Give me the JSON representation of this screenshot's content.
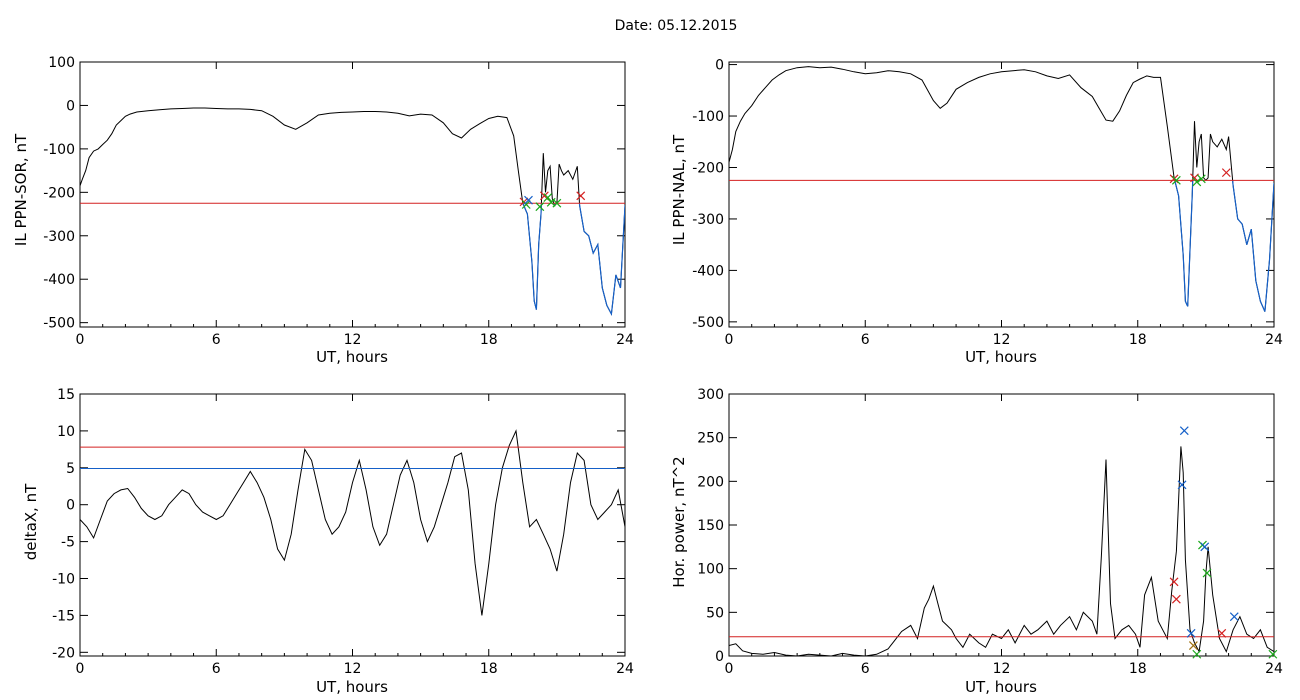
{
  "date_label": "Date:  05.12.2015",
  "colors": {
    "data": "#000000",
    "threshold": "#d42020",
    "lower": "#1560c8",
    "green": "#1aa81a"
  },
  "chart_data": [
    {
      "id": "sor",
      "type": "line",
      "ylabel": "IL PPN-SOR, nT",
      "xlabel": "UT, hours",
      "xlim": [
        0,
        24
      ],
      "ylim": [
        -510,
        100
      ],
      "xticks": [
        0,
        6,
        12,
        18,
        24
      ],
      "yticks": [
        100,
        0,
        -100,
        -200,
        -300,
        -400,
        -500
      ],
      "threshold": -225,
      "lower_color_below_threshold": true,
      "series": [
        {
          "x": [
            0,
            0.1,
            0.25,
            0.4,
            0.6,
            0.8,
            1.0,
            1.2,
            1.4,
            1.6,
            1.8,
            2.0,
            2.2,
            2.5,
            3.0,
            3.5,
            4.0,
            4.5,
            5.0,
            5.5,
            6.0,
            6.5,
            7.0,
            7.5,
            8.0,
            8.5,
            9.0,
            9.5,
            10.0,
            10.5,
            11.0,
            11.5,
            12.0,
            12.5,
            13.0,
            13.5,
            14.0,
            14.5,
            15.0,
            15.5,
            16.0,
            16.4,
            16.8,
            17.2,
            17.6,
            18.0,
            18.4,
            18.8,
            19.1,
            19.3,
            19.5,
            19.7,
            19.9,
            20.0,
            20.1,
            20.2,
            20.3,
            20.4,
            20.5,
            20.6,
            20.7,
            20.8,
            20.9,
            21.0,
            21.1,
            21.2,
            21.3,
            21.5,
            21.7,
            21.9,
            22.0,
            22.2,
            22.4,
            22.6,
            22.8,
            23.0,
            23.2,
            23.4,
            23.6,
            23.8,
            24.0
          ],
          "values": [
            -185,
            -170,
            -150,
            -120,
            -105,
            -100,
            -90,
            -80,
            -65,
            -45,
            -35,
            -25,
            -20,
            -15,
            -12,
            -10,
            -8,
            -7,
            -6,
            -6,
            -7,
            -8,
            -8,
            -9,
            -12,
            -25,
            -45,
            -55,
            -40,
            -22,
            -18,
            -16,
            -15,
            -14,
            -14,
            -15,
            -18,
            -24,
            -20,
            -22,
            -40,
            -65,
            -75,
            -55,
            -42,
            -30,
            -25,
            -28,
            -70,
            -150,
            -225,
            -250,
            -360,
            -450,
            -470,
            -320,
            -250,
            -110,
            -200,
            -150,
            -140,
            -215,
            -230,
            -225,
            -135,
            -150,
            -160,
            -150,
            -170,
            -140,
            -230,
            -290,
            -300,
            -340,
            -320,
            -420,
            -460,
            -480,
            -390,
            -420,
            -230
          ]
        }
      ],
      "markers": [
        {
          "x": 19.55,
          "y": -222,
          "color": "#d42020"
        },
        {
          "x": 19.65,
          "y": -228,
          "color": "#1aa81a"
        },
        {
          "x": 19.75,
          "y": -218,
          "color": "#1560c8"
        },
        {
          "x": 20.25,
          "y": -233,
          "color": "#1aa81a"
        },
        {
          "x": 20.45,
          "y": -208,
          "color": "#d42020"
        },
        {
          "x": 20.6,
          "y": -212,
          "color": "#1aa81a"
        },
        {
          "x": 20.75,
          "y": -223,
          "color": "#1aa81a"
        },
        {
          "x": 21.0,
          "y": -225,
          "color": "#1aa81a"
        },
        {
          "x": 22.05,
          "y": -208,
          "color": "#d42020"
        }
      ]
    },
    {
      "id": "nal",
      "type": "line",
      "ylabel": "IL PPN-NAL, nT",
      "xlabel": "UT, hours",
      "xlim": [
        0,
        24
      ],
      "ylim": [
        -510,
        5
      ],
      "xticks": [
        0,
        6,
        12,
        18,
        24
      ],
      "yticks": [
        0,
        -100,
        -200,
        -300,
        -400,
        -500
      ],
      "threshold": -225,
      "lower_color_below_threshold": true,
      "series": [
        {
          "x": [
            0,
            0.15,
            0.3,
            0.5,
            0.7,
            1.0,
            1.3,
            1.6,
            1.9,
            2.2,
            2.5,
            3.0,
            3.5,
            4.0,
            4.5,
            5.0,
            5.5,
            6.0,
            6.5,
            7.0,
            7.5,
            8.0,
            8.5,
            9.0,
            9.3,
            9.6,
            10.0,
            10.5,
            11.0,
            11.5,
            12.0,
            12.5,
            13.0,
            13.5,
            14.0,
            14.5,
            15.0,
            15.5,
            16.0,
            16.3,
            16.6,
            16.9,
            17.2,
            17.5,
            17.8,
            18.1,
            18.4,
            18.7,
            19.0,
            19.3,
            19.6,
            19.8,
            20.0,
            20.1,
            20.2,
            20.3,
            20.4,
            20.5,
            20.6,
            20.7,
            20.8,
            20.9,
            21.0,
            21.1,
            21.2,
            21.3,
            21.5,
            21.7,
            21.9,
            22.0,
            22.2,
            22.4,
            22.6,
            22.8,
            23.0,
            23.2,
            23.4,
            23.6,
            23.8,
            24.0
          ],
          "values": [
            -190,
            -165,
            -130,
            -110,
            -95,
            -80,
            -60,
            -45,
            -30,
            -20,
            -12,
            -6,
            -4,
            -6,
            -5,
            -9,
            -14,
            -18,
            -16,
            -12,
            -14,
            -18,
            -30,
            -70,
            -85,
            -75,
            -48,
            -35,
            -25,
            -18,
            -14,
            -12,
            -10,
            -14,
            -22,
            -27,
            -20,
            -45,
            -62,
            -85,
            -108,
            -110,
            -90,
            -60,
            -35,
            -28,
            -22,
            -25,
            -25,
            -120,
            -220,
            -255,
            -370,
            -460,
            -470,
            -360,
            -250,
            -110,
            -200,
            -150,
            -135,
            -220,
            -225,
            -220,
            -135,
            -150,
            -160,
            -145,
            -165,
            -140,
            -235,
            -300,
            -310,
            -350,
            -320,
            -420,
            -460,
            -480,
            -380,
            -230
          ]
        }
      ],
      "markers": [
        {
          "x": 19.6,
          "y": -222,
          "color": "#d42020"
        },
        {
          "x": 19.7,
          "y": -225,
          "color": "#1aa81a"
        },
        {
          "x": 20.5,
          "y": -220,
          "color": "#d42020"
        },
        {
          "x": 20.6,
          "y": -228,
          "color": "#1aa81a"
        },
        {
          "x": 20.8,
          "y": -222,
          "color": "#1aa81a"
        },
        {
          "x": 21.9,
          "y": -210,
          "color": "#d42020"
        }
      ]
    },
    {
      "id": "deltax",
      "type": "line",
      "ylabel": "deltaX, nT",
      "xlabel": "UT, hours",
      "xlim": [
        0,
        24
      ],
      "ylim": [
        -20.5,
        15
      ],
      "xticks": [
        0,
        6,
        12,
        18,
        24
      ],
      "yticks": [
        15,
        10,
        5,
        0,
        -5,
        -10,
        -15,
        -20
      ],
      "thresholds": [
        {
          "y": 7.8,
          "color": "#d42020"
        },
        {
          "y": 4.9,
          "color": "#1560c8"
        }
      ],
      "series": [
        {
          "x": [
            0,
            0.3,
            0.6,
            0.9,
            1.2,
            1.5,
            1.8,
            2.1,
            2.4,
            2.7,
            3.0,
            3.3,
            3.6,
            3.9,
            4.2,
            4.5,
            4.8,
            5.1,
            5.4,
            5.7,
            6.0,
            6.3,
            6.6,
            6.9,
            7.2,
            7.5,
            7.8,
            8.1,
            8.4,
            8.7,
            9.0,
            9.3,
            9.6,
            9.9,
            10.2,
            10.5,
            10.8,
            11.1,
            11.4,
            11.7,
            12.0,
            12.3,
            12.6,
            12.9,
            13.2,
            13.5,
            13.8,
            14.1,
            14.4,
            14.7,
            15.0,
            15.3,
            15.6,
            15.9,
            16.2,
            16.5,
            16.8,
            17.1,
            17.4,
            17.7,
            18.0,
            18.3,
            18.6,
            18.9,
            19.2,
            19.5,
            19.8,
            20.1,
            20.4,
            20.7,
            21.0,
            21.3,
            21.6,
            21.9,
            22.2,
            22.5,
            22.8,
            23.1,
            23.4,
            23.7,
            24.0
          ],
          "values": [
            -2,
            -3,
            -4.5,
            -2,
            0.5,
            1.5,
            2,
            2.2,
            1,
            -0.5,
            -1.5,
            -2,
            -1.5,
            0,
            1,
            2,
            1.5,
            0,
            -1,
            -1.5,
            -2,
            -1.5,
            0,
            1.5,
            3,
            4.5,
            3,
            1,
            -2,
            -6,
            -7.5,
            -4,
            2,
            7.5,
            6,
            2,
            -2,
            -4,
            -3,
            -1,
            3,
            6,
            2,
            -3,
            -5.5,
            -4,
            0,
            4,
            6,
            3,
            -2,
            -5,
            -3,
            0,
            3,
            6.5,
            7,
            2,
            -8,
            -15,
            -8,
            0,
            5,
            8,
            10,
            3,
            -3,
            -2,
            -4,
            -6,
            -9,
            -4,
            3,
            7,
            6,
            0,
            -2,
            -1,
            0,
            2,
            -3
          ]
        }
      ]
    },
    {
      "id": "power",
      "type": "line",
      "ylabel": "Hor. power, nT^2",
      "xlabel": "UT, hours",
      "xlim": [
        0,
        24
      ],
      "ylim": [
        0,
        300
      ],
      "xticks": [
        0,
        6,
        12,
        18,
        24
      ],
      "yticks": [
        300,
        250,
        200,
        150,
        100,
        50,
        0
      ],
      "threshold": 22,
      "series": [
        {
          "x": [
            0,
            0.3,
            0.6,
            1.0,
            1.5,
            2.0,
            2.5,
            3.0,
            3.5,
            4.0,
            4.5,
            5.0,
            5.5,
            6.0,
            6.5,
            7.0,
            7.3,
            7.6,
            8.0,
            8.3,
            8.6,
            8.8,
            9.0,
            9.2,
            9.4,
            9.6,
            9.8,
            10.0,
            10.3,
            10.6,
            11.0,
            11.3,
            11.6,
            12.0,
            12.3,
            12.6,
            13.0,
            13.3,
            13.6,
            14.0,
            14.3,
            14.6,
            15.0,
            15.3,
            15.6,
            16.0,
            16.2,
            16.4,
            16.6,
            16.8,
            17.0,
            17.3,
            17.6,
            17.9,
            18.1,
            18.3,
            18.6,
            18.9,
            19.1,
            19.3,
            19.5,
            19.7,
            19.9,
            20.0,
            20.1,
            20.3,
            20.5,
            20.7,
            20.9,
            21.0,
            21.1,
            21.3,
            21.6,
            21.9,
            22.2,
            22.5,
            22.8,
            23.1,
            23.4,
            23.7,
            24.0
          ],
          "values": [
            12,
            14,
            6,
            3,
            2,
            4,
            1,
            0,
            2,
            1,
            0,
            3,
            1,
            0,
            2,
            8,
            18,
            28,
            35,
            20,
            55,
            65,
            80,
            60,
            40,
            35,
            30,
            20,
            10,
            25,
            15,
            10,
            25,
            20,
            30,
            15,
            35,
            25,
            30,
            40,
            25,
            35,
            45,
            30,
            50,
            40,
            25,
            115,
            225,
            60,
            20,
            30,
            35,
            25,
            10,
            70,
            90,
            40,
            30,
            20,
            75,
            120,
            240,
            210,
            110,
            30,
            15,
            5,
            40,
            95,
            125,
            70,
            20,
            5,
            30,
            45,
            25,
            20,
            30,
            10,
            5
          ]
        }
      ],
      "markers": [
        {
          "x": 19.6,
          "y": 85,
          "color": "#d42020"
        },
        {
          "x": 19.7,
          "y": 65,
          "color": "#d42020"
        },
        {
          "x": 19.95,
          "y": 196,
          "color": "#1560c8"
        },
        {
          "x": 20.05,
          "y": 258,
          "color": "#1560c8"
        },
        {
          "x": 20.35,
          "y": 26,
          "color": "#1560c8"
        },
        {
          "x": 20.45,
          "y": 12,
          "color": "#a07010"
        },
        {
          "x": 20.6,
          "y": 2,
          "color": "#1aa81a"
        },
        {
          "x": 20.85,
          "y": 127,
          "color": "#1aa81a"
        },
        {
          "x": 20.95,
          "y": 125,
          "color": "#1560c8"
        },
        {
          "x": 21.05,
          "y": 95,
          "color": "#1aa81a"
        },
        {
          "x": 21.7,
          "y": 26,
          "color": "#d42020"
        },
        {
          "x": 22.25,
          "y": 45,
          "color": "#1560c8"
        },
        {
          "x": 23.95,
          "y": 2,
          "color": "#1aa81a"
        }
      ]
    }
  ]
}
